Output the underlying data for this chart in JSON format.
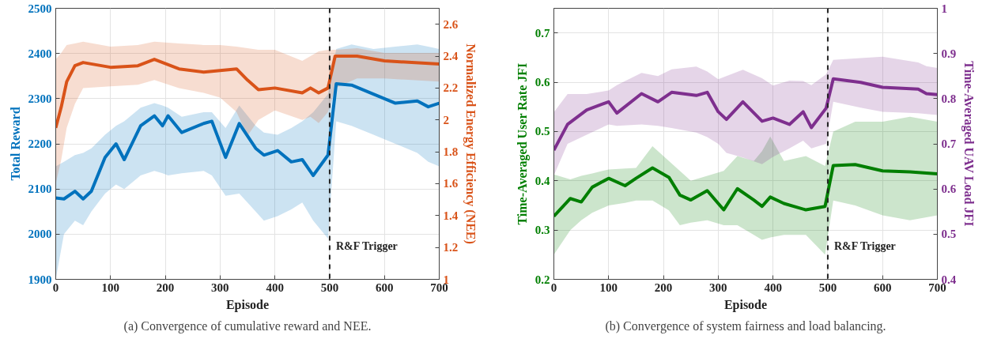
{
  "chart_data": [
    {
      "type": "line",
      "xlabel": "Episode",
      "ylabel": "Total Reward",
      "y2label": "Normalized Energy Efficiency (NEE)",
      "xlim": [
        0,
        700
      ],
      "xticks": [
        0,
        100,
        200,
        300,
        400,
        500,
        600,
        700
      ],
      "ylim": [
        1900,
        2500
      ],
      "yticks": [
        1900,
        2000,
        2100,
        2200,
        2300,
        2400,
        2500
      ],
      "y2lim": [
        1,
        2.7
      ],
      "y2ticks": [
        1,
        1.2,
        1.4,
        1.6,
        1.8,
        2,
        2.2,
        2.4,
        2.6
      ],
      "grid": true,
      "line_style": "solid",
      "ref_lines": [
        {
          "axis": "x",
          "value": 500,
          "label": "R&F Trigger",
          "color": "#222222",
          "line_style": "dashed"
        }
      ],
      "annotations": [
        "(a) Convergence of cumulative reward and NEE."
      ],
      "series": [
        {
          "color": "#0072bd",
          "x": [
            0,
            15,
            35,
            50,
            65,
            90,
            110,
            125,
            155,
            180,
            195,
            205,
            230,
            270,
            285,
            310,
            335,
            365,
            380,
            405,
            430,
            450,
            470,
            497,
            512,
            540,
            580,
            620,
            660,
            680,
            700
          ],
          "values": [
            2080,
            2078,
            2095,
            2078,
            2095,
            2170,
            2200,
            2165,
            2240,
            2262,
            2240,
            2262,
            2225,
            2245,
            2250,
            2170,
            2245,
            2190,
            2175,
            2185,
            2160,
            2165,
            2130,
            2175,
            2333,
            2330,
            2310,
            2290,
            2295,
            2282,
            2290
          ],
          "lower": [
            1900,
            2000,
            2030,
            2020,
            2050,
            2090,
            2110,
            2100,
            2130,
            2140,
            2135,
            2130,
            2135,
            2140,
            2130,
            2085,
            2090,
            2050,
            2030,
            2040,
            2055,
            2070,
            2030,
            1990,
            2250,
            2240,
            2220,
            2200,
            2180,
            2160,
            2150
          ],
          "upper": [
            2150,
            2160,
            2175,
            2180,
            2190,
            2220,
            2240,
            2250,
            2280,
            2290,
            2285,
            2280,
            2260,
            2270,
            2270,
            2235,
            2285,
            2240,
            2225,
            2220,
            2235,
            2250,
            2270,
            2310,
            2410,
            2420,
            2410,
            2415,
            2420,
            2415,
            2410
          ]
        },
        {
          "color": "#d95319",
          "axis": "y2",
          "x": [
            0,
            10,
            20,
            35,
            50,
            100,
            150,
            180,
            225,
            270,
            300,
            330,
            350,
            370,
            400,
            450,
            465,
            480,
            497,
            510,
            550,
            600,
            650,
            700
          ],
          "values": [
            1.95,
            2.08,
            2.24,
            2.34,
            2.36,
            2.33,
            2.34,
            2.38,
            2.32,
            2.3,
            2.31,
            2.32,
            2.25,
            2.19,
            2.2,
            2.17,
            2.2,
            2.17,
            2.2,
            2.4,
            2.4,
            2.37,
            2.36,
            2.35
          ],
          "lower": [
            1.6,
            1.75,
            1.95,
            2.1,
            2.2,
            2.21,
            2.22,
            2.25,
            2.2,
            2.17,
            2.14,
            2.05,
            1.9,
            2.0,
            2.06,
            2.0,
            2.02,
            1.98,
            2.05,
            2.2,
            2.26,
            2.26,
            2.25,
            2.24
          ],
          "upper": [
            2.38,
            2.42,
            2.47,
            2.48,
            2.49,
            2.46,
            2.47,
            2.49,
            2.48,
            2.47,
            2.47,
            2.46,
            2.45,
            2.44,
            2.44,
            2.37,
            2.4,
            2.43,
            2.44,
            2.44,
            2.45,
            2.42,
            2.42,
            2.42
          ]
        }
      ]
    },
    {
      "type": "line",
      "xlabel": "Episode",
      "ylabel": "Time-Averaged User Rate JFI",
      "y2label": "Time-Averaged UAV Load JFI",
      "xlim": [
        0,
        700
      ],
      "xticks": [
        0,
        100,
        200,
        300,
        400,
        500,
        600,
        700
      ],
      "ylim": [
        0.2,
        0.75
      ],
      "yticks": [
        0.2,
        0.3,
        0.4,
        0.5,
        0.6,
        0.7
      ],
      "y2lim": [
        0.4,
        1
      ],
      "y2ticks": [
        0.4,
        0.5,
        0.6,
        0.7,
        0.8,
        0.9,
        1
      ],
      "grid": true,
      "line_style": "solid",
      "ref_lines": [
        {
          "axis": "x",
          "value": 500,
          "label": "R&F Trigger",
          "color": "#222222",
          "line_style": "dashed"
        }
      ],
      "annotations": [
        "(b) Convergence of system fairness and load balancing."
      ],
      "series": [
        {
          "color": "#007f00",
          "x": [
            0,
            30,
            50,
            70,
            100,
            130,
            150,
            180,
            210,
            230,
            250,
            280,
            310,
            335,
            365,
            380,
            395,
            420,
            460,
            495,
            510,
            550,
            600,
            650,
            700
          ],
          "values": [
            0.328,
            0.364,
            0.357,
            0.387,
            0.405,
            0.39,
            0.405,
            0.426,
            0.407,
            0.371,
            0.361,
            0.38,
            0.341,
            0.384,
            0.361,
            0.348,
            0.367,
            0.354,
            0.341,
            0.348,
            0.431,
            0.433,
            0.42,
            0.418,
            0.414
          ],
          "lower": [
            0.25,
            0.3,
            0.32,
            0.335,
            0.35,
            0.355,
            0.36,
            0.36,
            0.34,
            0.31,
            0.315,
            0.32,
            0.31,
            0.31,
            0.29,
            0.28,
            0.285,
            0.29,
            0.29,
            0.25,
            0.36,
            0.35,
            0.33,
            0.32,
            0.33
          ],
          "upper": [
            0.413,
            0.403,
            0.41,
            0.415,
            0.423,
            0.425,
            0.426,
            0.47,
            0.44,
            0.42,
            0.4,
            0.41,
            0.42,
            0.45,
            0.44,
            0.46,
            0.49,
            0.44,
            0.45,
            0.43,
            0.5,
            0.52,
            0.52,
            0.53,
            0.52
          ]
        },
        {
          "color": "#7e2f8e",
          "axis": "y2",
          "x": [
            0,
            25,
            60,
            100,
            115,
            160,
            190,
            215,
            260,
            280,
            300,
            315,
            345,
            380,
            400,
            430,
            455,
            470,
            497,
            510,
            560,
            600,
            665,
            680,
            700
          ],
          "values": [
            0.686,
            0.743,
            0.775,
            0.793,
            0.768,
            0.811,
            0.793,
            0.814,
            0.807,
            0.814,
            0.771,
            0.754,
            0.793,
            0.75,
            0.757,
            0.743,
            0.771,
            0.736,
            0.779,
            0.844,
            0.836,
            0.825,
            0.821,
            0.811,
            0.809
          ],
          "lower": [
            0.63,
            0.7,
            0.72,
            0.743,
            0.74,
            0.743,
            0.74,
            0.735,
            0.725,
            0.715,
            0.7,
            0.68,
            0.67,
            0.655,
            0.671,
            0.69,
            0.707,
            0.69,
            0.7,
            0.793,
            0.78,
            0.771,
            0.768,
            0.766,
            0.764
          ],
          "upper": [
            0.77,
            0.81,
            0.81,
            0.818,
            0.83,
            0.857,
            0.85,
            0.865,
            0.871,
            0.86,
            0.843,
            0.85,
            0.864,
            0.845,
            0.829,
            0.84,
            0.839,
            0.83,
            0.854,
            0.886,
            0.89,
            0.893,
            0.88,
            0.872,
            0.868
          ]
        }
      ]
    }
  ]
}
